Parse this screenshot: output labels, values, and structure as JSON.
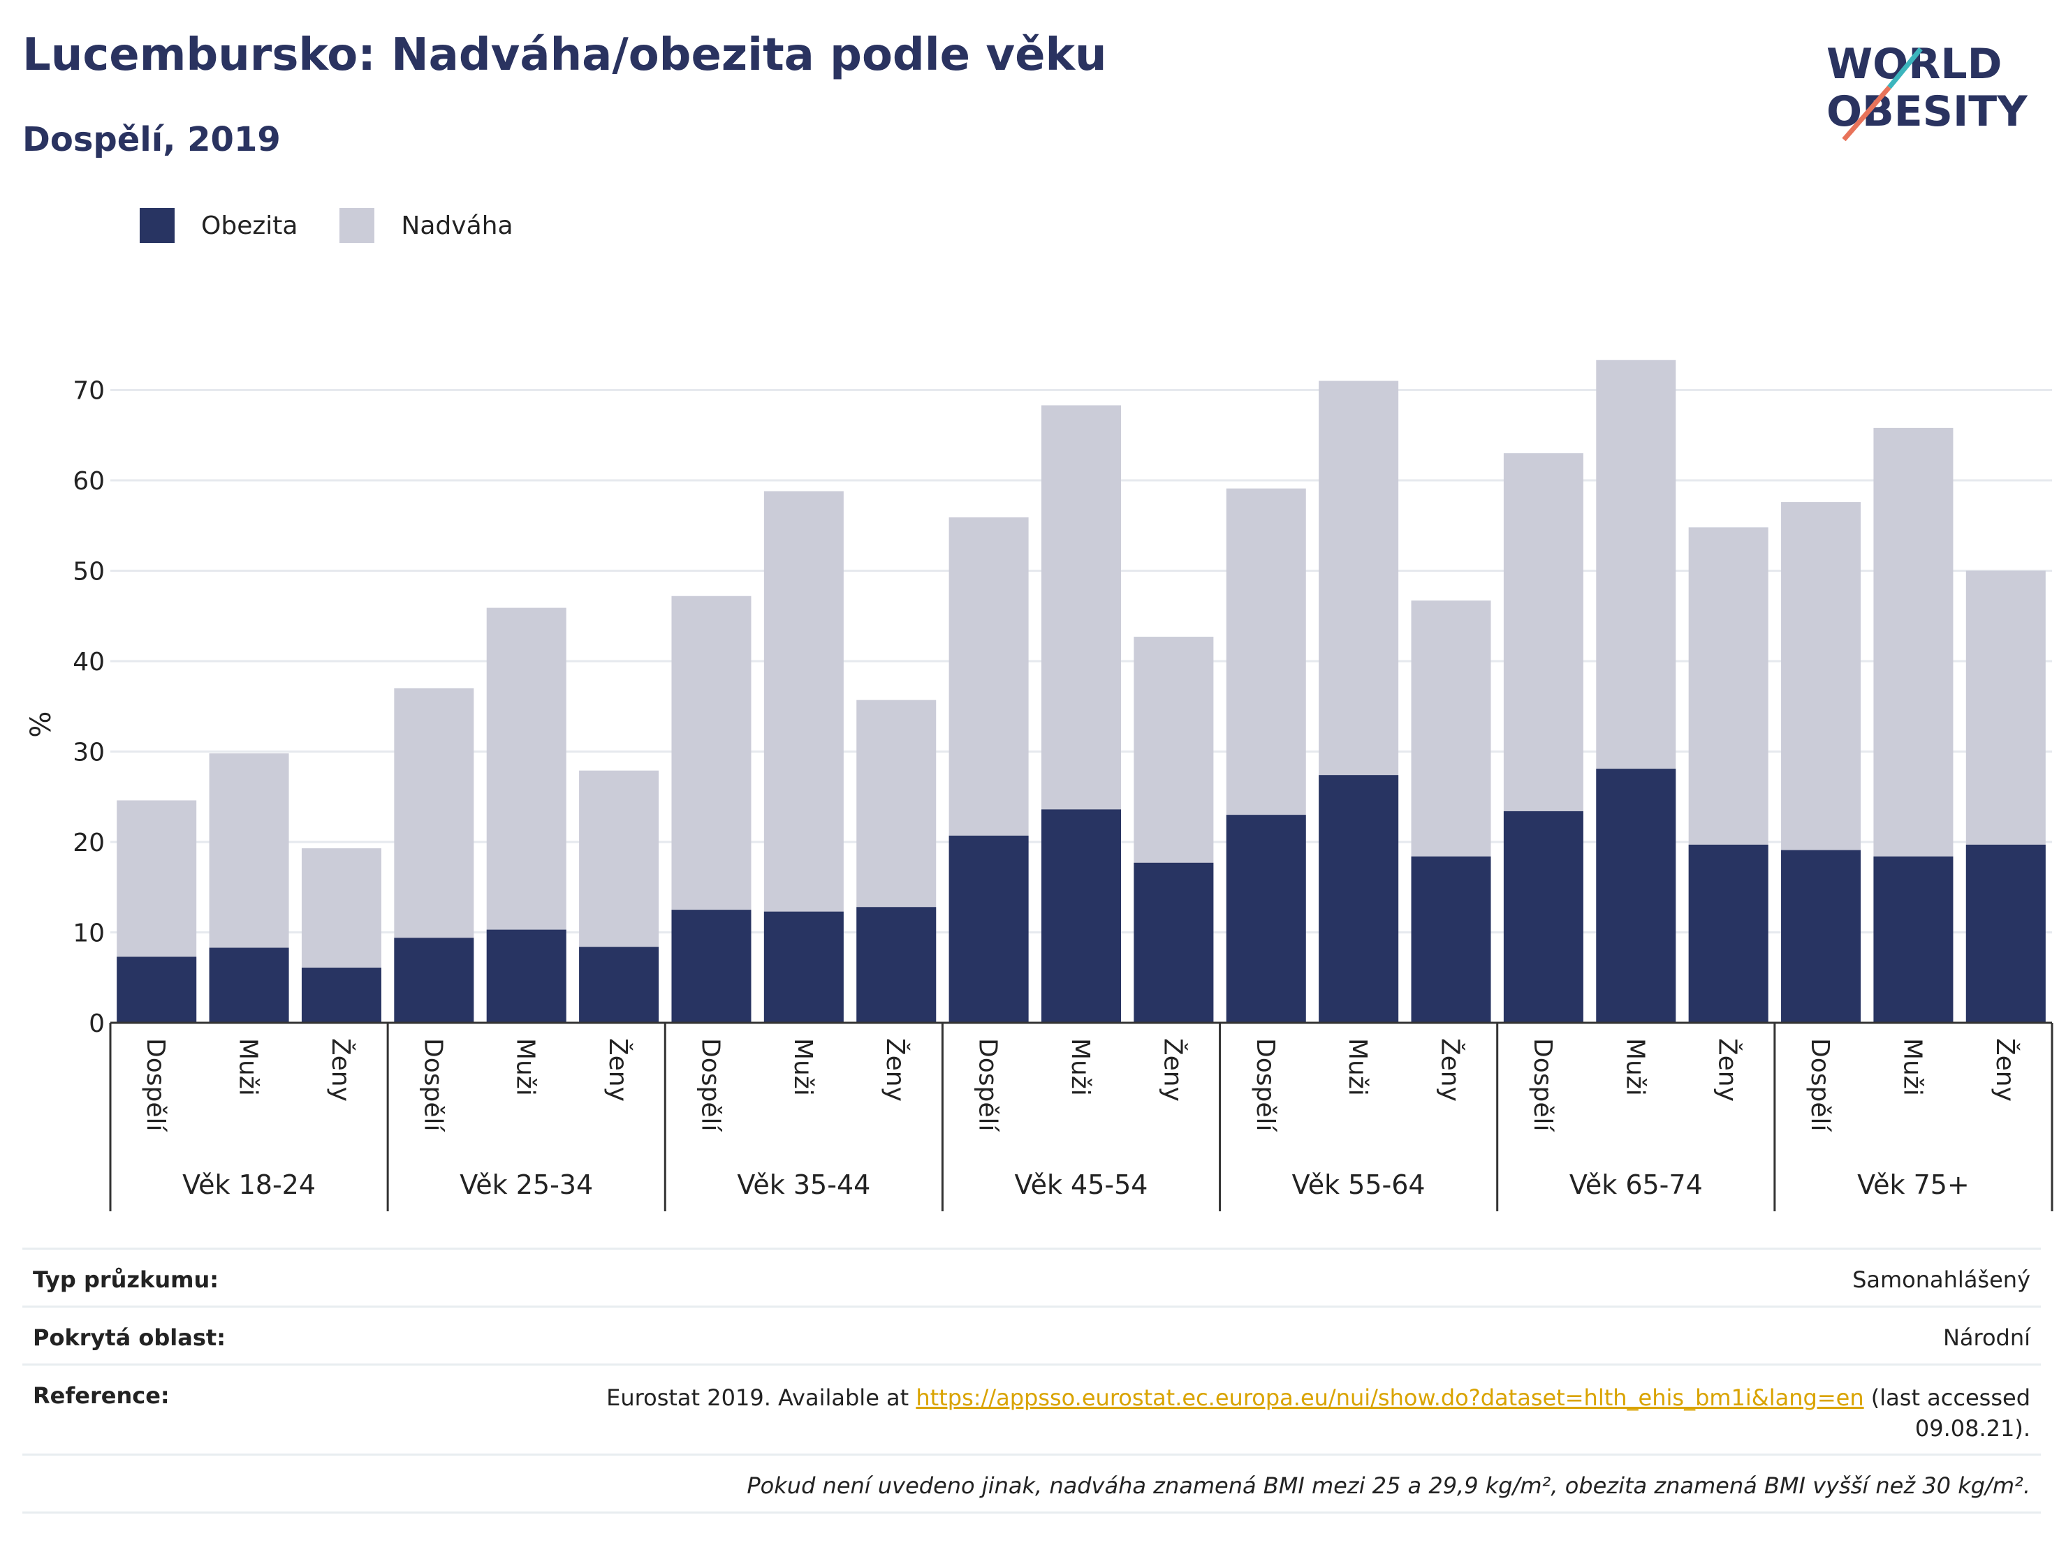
{
  "title": "Lucembursko: Nadváha/obezita podle věku",
  "subtitle": "Dospělí, 2019",
  "logo": {
    "line1": "WORLD",
    "line2": "OBESITY"
  },
  "legend": [
    {
      "label": "Obezita",
      "color": "#283462"
    },
    {
      "label": "Nadváha",
      "color": "#cbccd8"
    }
  ],
  "chart_data": {
    "type": "bar",
    "stacked": "overlay",
    "ylabel": "%",
    "ylim": [
      0,
      75
    ],
    "yticks": [
      0,
      10,
      20,
      30,
      40,
      50,
      60,
      70
    ],
    "groups": [
      "Věk 18-24",
      "Věk 25-34",
      "Věk 35-44",
      "Věk 45-54",
      "Věk 55-64",
      "Věk 65-74",
      "Věk 75+"
    ],
    "subcategories": [
      "Dospělí",
      "Muži",
      "Ženy"
    ],
    "series": [
      {
        "name": "Obezita",
        "color": "#283462",
        "values": [
          7.3,
          8.3,
          6.1,
          9.4,
          10.3,
          8.4,
          12.5,
          12.3,
          12.8,
          20.7,
          23.6,
          17.7,
          23.0,
          27.4,
          18.4,
          23.4,
          28.1,
          19.7,
          19.1,
          18.4,
          19.7
        ]
      },
      {
        "name": "Nadváha",
        "color": "#cbccd8",
        "values": [
          24.6,
          29.8,
          19.3,
          37.0,
          45.9,
          27.9,
          47.2,
          58.8,
          35.7,
          55.9,
          68.3,
          42.7,
          59.1,
          71.0,
          46.7,
          63.0,
          73.3,
          54.8,
          57.6,
          65.8,
          50.0
        ]
      }
    ],
    "grid": true
  },
  "info": {
    "survey_label": "Typ průzkumu:",
    "survey_value": "Samonahlášený",
    "area_label": "Pokrytá oblast:",
    "area_value": "Národní",
    "ref_label": "Reference:",
    "ref_prefix": "Eurostat 2019. Available at ",
    "ref_link": "https://appsso.eurostat.ec.europa.eu/nui/show.do?dataset=hlth_ehis_bm1i&lang=en",
    "ref_suffix": " (last accessed",
    "ref_suffix2": "09.08.21).",
    "note": "Pokud není uvedeno jinak, nadváha znamená BMI mezi 25 a 29,9 kg/m², obezita znamená BMI vyšší než 30 kg/m²."
  }
}
